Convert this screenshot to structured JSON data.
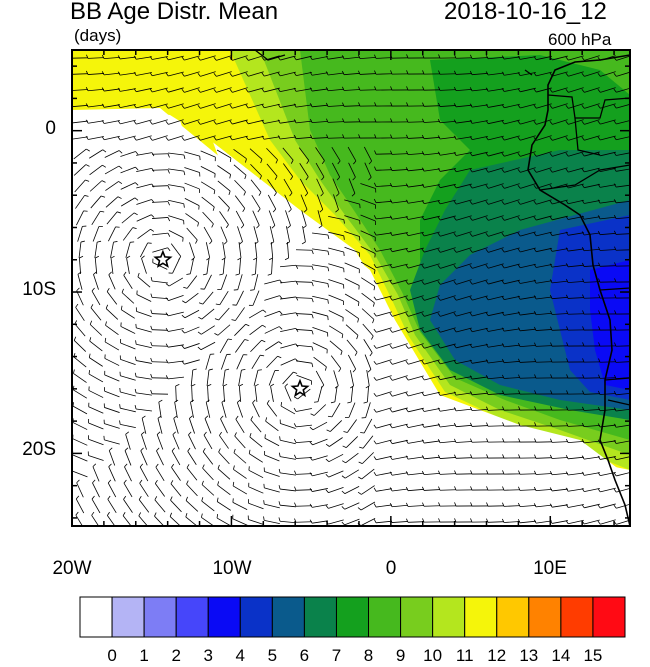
{
  "header": {
    "title": "BB Age Distr. Mean",
    "units": "(days)",
    "datetime": "2018-10-16_12",
    "level": "600 hPa"
  },
  "axes": {
    "lat_labels": [
      "0",
      "10S",
      "20S"
    ],
    "lon_labels": [
      "20W",
      "10W",
      "0",
      "10E"
    ],
    "lon_range": [
      -20,
      15
    ],
    "lat_range": [
      -24.5,
      5
    ]
  },
  "colorbar": {
    "labels": [
      "0",
      "1",
      "2",
      "3",
      "4",
      "5",
      "6",
      "7",
      "8",
      "9",
      "10",
      "11",
      "12",
      "13",
      "14",
      "15"
    ],
    "colors": [
      "#ffffff",
      "#b4b4f5",
      "#7d7df5",
      "#4646fa",
      "#0a0af5",
      "#0a32c8",
      "#0a5a8c",
      "#0a824b",
      "#14a01e",
      "#46b91e",
      "#78cd1e",
      "#b4e61e",
      "#f5f50a",
      "#ffc800",
      "#ff8200",
      "#ff3c00",
      "#ff0a14"
    ]
  },
  "markers": [
    {
      "name": "star",
      "lon": -14.3,
      "lat": -8.0
    },
    {
      "name": "star",
      "lon": -5.7,
      "lat": -16.0
    }
  ]
}
